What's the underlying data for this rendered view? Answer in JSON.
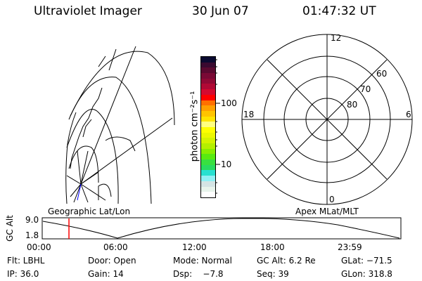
{
  "header": {
    "title": "Ultraviolet Imager",
    "date": "30 Jun 07",
    "time": "01:47:32 UT"
  },
  "colorbar": {
    "unit_label": "photon cm⁻²s⁻¹",
    "tick_labels": [
      "100",
      "10"
    ],
    "colors": [
      "#0a0a30",
      "#3a0a30",
      "#5a0a30",
      "#7a0a35",
      "#900a35",
      "#b00a35",
      "#d40a30",
      "#ff0000",
      "#ff7000",
      "#ffa000",
      "#ffc400",
      "#ffe400",
      "#ffff80",
      "#ffff00",
      "#ecf800",
      "#d4f400",
      "#b4f000",
      "#88ee00",
      "#58ea10",
      "#38e040",
      "#28dc60",
      "#28e0d0",
      "#90f0f4",
      "#d4e4e4",
      "#e8f4ec",
      "#ffffff"
    ]
  },
  "map": {
    "label": "Geographic Lat/Lon"
  },
  "polar": {
    "label": "Apex MLat/MLT",
    "mlt_labels": {
      "top": "12",
      "bottom": "0",
      "left": "18",
      "right": "6"
    },
    "lat_labels": [
      "60",
      "70",
      "80"
    ]
  },
  "altplot": {
    "ylabel": "GC Alt",
    "yticks": [
      "9.0",
      "1.8"
    ],
    "xticks": [
      "00:00",
      "06:00",
      "12:00",
      "18:00",
      "23:59"
    ],
    "current_time_hours": 1.79,
    "marker_color": "#ff0000"
  },
  "status": {
    "row1": [
      "Flt: LBHL",
      "Door: Open",
      "Mode: Normal",
      "GC Alt: 6.2 Re",
      "GLat: −71.5"
    ],
    "row2": [
      "IP: 36.0",
      "Gain: 14",
      "Dsp:    −7.8",
      "Seq: 39",
      "GLon: 318.8"
    ]
  }
}
